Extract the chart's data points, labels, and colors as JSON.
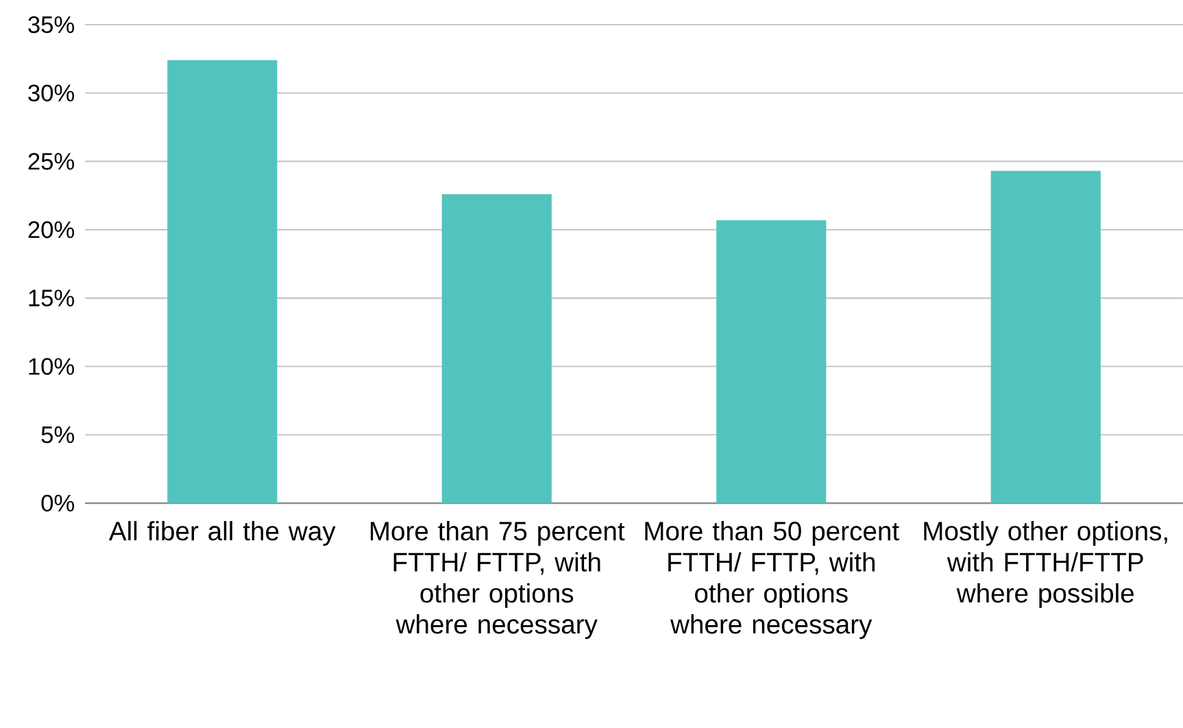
{
  "chart_data": {
    "type": "bar",
    "categories": [
      "All fiber all the way",
      "More than 75 percent FTTH/ FTTP, with other options where necessary",
      "More than 50 percent FTTH/ FTTP, with other options where necessary",
      "Mostly other options, with FTTH/FTTP where possible"
    ],
    "values": [
      32.4,
      22.6,
      20.7,
      24.3
    ],
    "color": "#52c4bd",
    "ylim": [
      0,
      35
    ],
    "yticks": [
      {
        "value": 0,
        "label": "0%"
      },
      {
        "value": 5,
        "label": "5%"
      },
      {
        "value": 10,
        "label": "10%"
      },
      {
        "value": 15,
        "label": "15%"
      },
      {
        "value": 20,
        "label": "20%"
      },
      {
        "value": 25,
        "label": "25%"
      },
      {
        "value": 30,
        "label": "30%"
      },
      {
        "value": 35,
        "label": "35%"
      }
    ],
    "grid": "y"
  }
}
